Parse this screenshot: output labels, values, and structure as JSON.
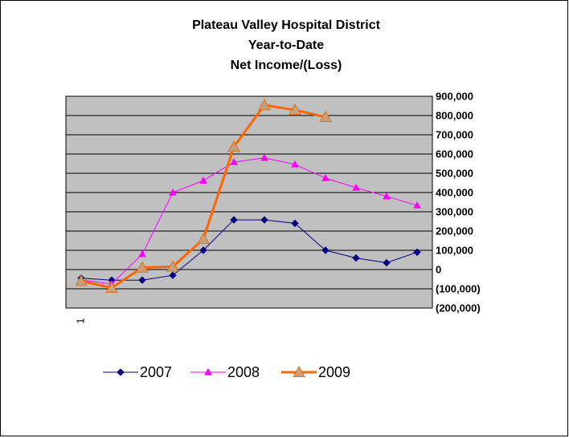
{
  "chart_data": {
    "type": "line",
    "title": [
      "Plateau Valley Hospital District",
      "Year-to-Date",
      "Net Income/(Loss)"
    ],
    "categories": [
      "1",
      null,
      null,
      null,
      null,
      null,
      null,
      null,
      null,
      null,
      null,
      null
    ],
    "series": [
      {
        "name": "2007",
        "color": "#000080",
        "marker": "diamond",
        "marker_color": "#000080",
        "values": [
          -45000,
          -55000,
          -55000,
          -30000,
          100000,
          258000,
          258000,
          240000,
          100000,
          60000,
          35000,
          90000
        ]
      },
      {
        "name": "2008",
        "color": "#ff00ff",
        "marker": "triangle",
        "marker_color": "#ff00ff",
        "values": [
          -54000,
          -75000,
          80000,
          400000,
          462000,
          558000,
          580000,
          546000,
          475000,
          425000,
          380000,
          333000
        ]
      },
      {
        "name": "2009",
        "color": "#ff6600",
        "marker": "big-triangle",
        "marker_color": "#c8a078",
        "values": [
          -60000,
          -95000,
          10000,
          15000,
          158000,
          637000,
          854000,
          829000,
          792000,
          null,
          null,
          null
        ]
      }
    ],
    "ylim": [
      -200000,
      900000
    ],
    "yticks": [
      {
        "value": -200000,
        "label": "(200,000)"
      },
      {
        "value": -100000,
        "label": "(100,000)"
      },
      0,
      {
        "value": 100000,
        "label": "100,000"
      },
      {
        "value": 200000,
        "label": "200,000"
      },
      {
        "value": 300000,
        "label": "300,000"
      },
      {
        "value": 400000,
        "label": "400,000"
      },
      {
        "value": 500000,
        "label": "500,000"
      },
      {
        "value": 600000,
        "label": "600,000"
      },
      {
        "value": 700000,
        "label": "700,000"
      },
      {
        "value": 800000,
        "label": "800,000"
      },
      {
        "value": 900000,
        "label": "900,000"
      }
    ],
    "grid": true,
    "y_axis_side": "right",
    "legend": "bottom",
    "plot_background": "#c0c0c0"
  }
}
